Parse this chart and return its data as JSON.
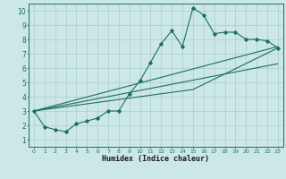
{
  "title": "",
  "xlabel": "Humidex (Indice chaleur)",
  "bg_color": "#cce8e6",
  "grid_color": "#aaccca",
  "line_color": "#1a6e65",
  "xlim": [
    -0.5,
    23.5
  ],
  "ylim": [
    0.5,
    10.5
  ],
  "xticks": [
    0,
    1,
    2,
    3,
    4,
    5,
    6,
    7,
    8,
    9,
    10,
    11,
    12,
    13,
    14,
    15,
    16,
    17,
    18,
    19,
    20,
    21,
    22,
    23
  ],
  "yticks": [
    1,
    2,
    3,
    4,
    5,
    6,
    7,
    8,
    9,
    10
  ],
  "main_x": [
    0,
    1,
    2,
    3,
    4,
    5,
    6,
    7,
    8,
    9,
    10,
    11,
    12,
    13,
    14,
    15,
    16,
    17,
    18,
    19,
    20,
    21,
    22,
    23
  ],
  "main_y": [
    3.0,
    1.9,
    1.7,
    1.55,
    2.1,
    2.3,
    2.5,
    3.0,
    3.0,
    4.2,
    5.1,
    6.4,
    7.7,
    8.6,
    7.5,
    10.2,
    9.7,
    8.4,
    8.5,
    8.5,
    8.0,
    8.0,
    7.9,
    7.4
  ],
  "line2_x": [
    0,
    23
  ],
  "line2_y": [
    3.0,
    7.5
  ],
  "line3_x": [
    0,
    23
  ],
  "line3_y": [
    3.0,
    6.3
  ],
  "line4_x": [
    0,
    15,
    23
  ],
  "line4_y": [
    3.0,
    4.5,
    7.4
  ]
}
